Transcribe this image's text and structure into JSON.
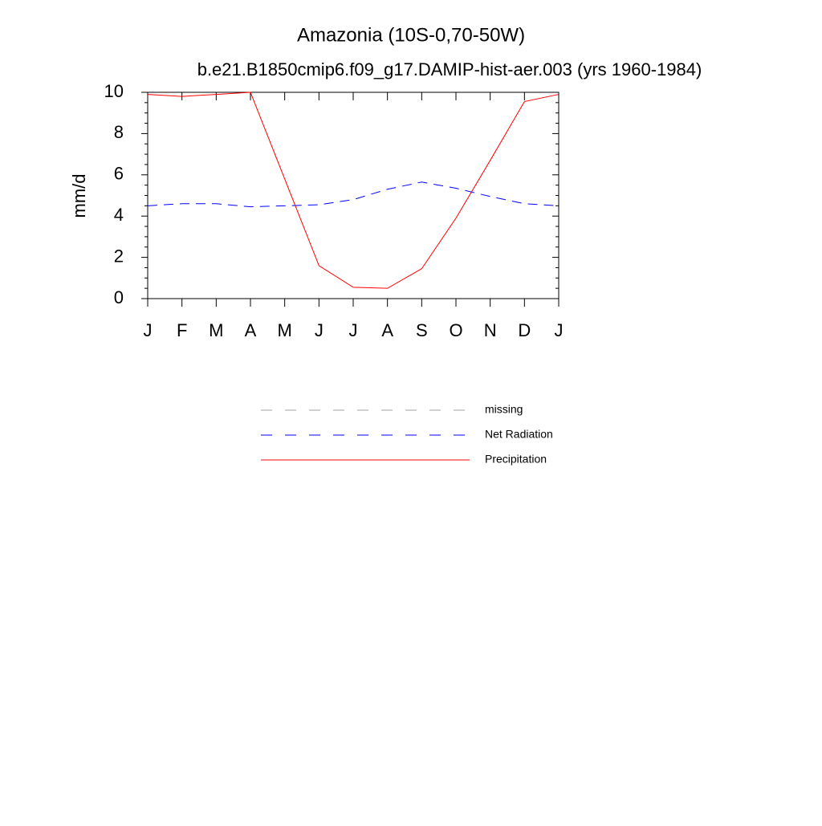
{
  "chart_data": {
    "type": "line",
    "title": "Amazonia (10S-0,70-50W)",
    "subtitle": "b.e21.B1850cmip6.f09_g17.DAMIP-hist-aer.003 (yrs 1960-1984)",
    "y_label": "mm/d",
    "categories": [
      "J",
      "F",
      "M",
      "A",
      "M",
      "J",
      "J",
      "A",
      "S",
      "O",
      "N",
      "D",
      "J"
    ],
    "series": [
      {
        "name": "missing",
        "color": "#a0a0a0",
        "dash": "dashed",
        "values": [
          null,
          null,
          null,
          null,
          null,
          null,
          null,
          null,
          null,
          null,
          null,
          null,
          null
        ]
      },
      {
        "name": "Net Radiation",
        "color": "#0000ff",
        "dash": "dashed",
        "values": [
          4.5,
          4.6,
          4.6,
          4.45,
          4.5,
          4.55,
          4.8,
          5.3,
          5.65,
          5.35,
          4.95,
          4.6,
          4.5
        ]
      },
      {
        "name": "Precipitation",
        "color": "#ff0000",
        "dash": "solid",
        "values": [
          9.9,
          9.8,
          9.9,
          10.0,
          5.8,
          1.6,
          0.55,
          0.5,
          1.45,
          3.9,
          6.7,
          9.55,
          9.9
        ]
      }
    ],
    "ylim": [
      0,
      10
    ],
    "yticks": [
      0,
      2,
      4,
      6,
      8,
      10
    ],
    "grid": false
  }
}
